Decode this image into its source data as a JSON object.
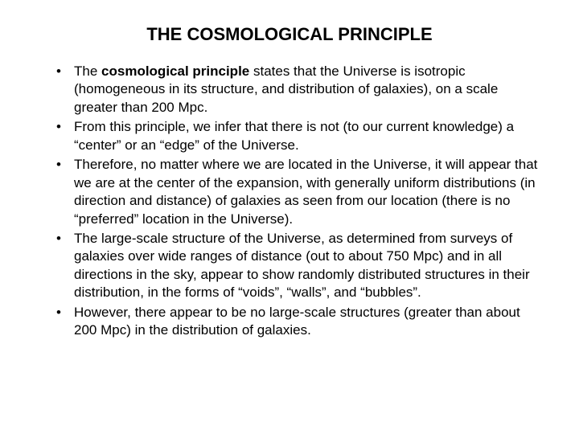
{
  "title": "THE COSMOLOGICAL PRINCIPLE",
  "bullets": [
    {
      "prefix": "The ",
      "bold": "cosmological principle",
      "rest": " states that the Universe is isotropic (homogeneous in its structure, and distribution of galaxies), on a scale greater than 200 Mpc."
    },
    {
      "text": "From this principle, we infer that there is not (to our current knowledge) a “center” or an “edge” of the Universe."
    },
    {
      "text": "Therefore, no matter where we are located in the Universe, it will appear that we are at the center of the expansion, with generally uniform distributions (in direction and distance) of galaxies as seen from our location (there is no “preferred” location in the Universe)."
    },
    {
      "text": "The large-scale structure of the Universe, as determined from surveys of galaxies over wide ranges of distance (out to about 750 Mpc) and in all directions in the sky, appear to show randomly distributed structures in their distribution, in the forms of “voids”, “walls”, and “bubbles”."
    },
    {
      "text": "However, there appear to be no large-scale structures (greater than about 200 Mpc) in the distribution of galaxies."
    }
  ],
  "colors": {
    "background": "#ffffff",
    "text": "#000000"
  },
  "typography": {
    "title_fontsize": 22,
    "title_weight": "bold",
    "body_fontsize": 17,
    "line_height": 1.32,
    "font_family": "Arial"
  }
}
